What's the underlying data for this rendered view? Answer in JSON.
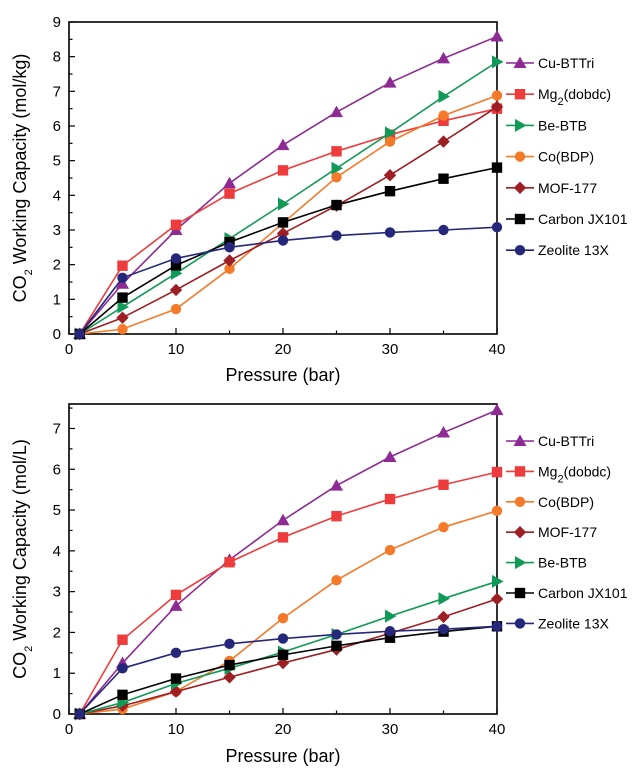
{
  "chart_data": [
    {
      "type": "line",
      "xlabel": "Pressure (bar)",
      "ylabel_parts": [
        "CO",
        "2",
        " Working Capacity (mol/kg)"
      ],
      "xlim": [
        0,
        40
      ],
      "ylim": [
        0,
        9
      ],
      "xticks": [
        0,
        10,
        20,
        30,
        40
      ],
      "yticks": [
        0,
        1,
        2,
        3,
        4,
        5,
        6,
        7,
        8,
        9
      ],
      "x": [
        1,
        5,
        10,
        15,
        20,
        25,
        30,
        35,
        40
      ],
      "legend_position": "right",
      "series": [
        {
          "name_parts": [
            "Cu-BTTri"
          ],
          "marker": "triangle-up",
          "color": "#8e2a93",
          "values": [
            0,
            1.45,
            3.0,
            4.35,
            5.45,
            6.4,
            7.25,
            7.95,
            8.58
          ]
        },
        {
          "name_parts": [
            "Mg",
            "2",
            "(dobdc)"
          ],
          "marker": "square",
          "color": "#ee3b3b",
          "values": [
            0,
            1.97,
            3.15,
            4.05,
            4.72,
            5.27,
            5.75,
            6.15,
            6.5
          ]
        },
        {
          "name_parts": [
            "Be-BTB"
          ],
          "marker": "triangle-right",
          "color": "#119a57",
          "values": [
            0,
            0.78,
            1.75,
            2.75,
            3.75,
            4.78,
            5.8,
            6.85,
            7.85
          ]
        },
        {
          "name_parts": [
            "Co(BDP)"
          ],
          "marker": "circle",
          "color": "#f47a2a",
          "values": [
            0,
            0.14,
            0.72,
            1.88,
            3.2,
            4.52,
            5.55,
            6.3,
            6.88
          ]
        },
        {
          "name_parts": [
            "MOF-177"
          ],
          "marker": "diamond",
          "color": "#9d1f24",
          "values": [
            0,
            0.47,
            1.27,
            2.12,
            2.9,
            3.7,
            4.58,
            5.55,
            6.55
          ]
        },
        {
          "name_parts": [
            "Carbon JX101"
          ],
          "marker": "square",
          "color": "#000000",
          "values": [
            0,
            1.05,
            1.98,
            2.65,
            3.22,
            3.72,
            4.12,
            4.48,
            4.8
          ]
        },
        {
          "name_parts": [
            "Zeolite 13X"
          ],
          "marker": "circle",
          "color": "#25287a",
          "values": [
            0,
            1.62,
            2.18,
            2.5,
            2.7,
            2.84,
            2.93,
            3.0,
            3.08
          ]
        }
      ]
    },
    {
      "type": "line",
      "xlabel": "Pressure (bar)",
      "ylabel_parts": [
        "CO",
        "2",
        " Working Capacity (mol/L)"
      ],
      "xlim": [
        0,
        40
      ],
      "ylim": [
        0,
        7.6
      ],
      "xticks": [
        0,
        10,
        20,
        30,
        40
      ],
      "yticks": [
        0,
        1,
        2,
        3,
        4,
        5,
        6,
        7
      ],
      "x": [
        1,
        5,
        10,
        15,
        20,
        25,
        30,
        35,
        40
      ],
      "legend_position": "right",
      "series": [
        {
          "name_parts": [
            "Cu-BTTri"
          ],
          "marker": "triangle-up",
          "color": "#8e2a93",
          "values": [
            0,
            1.25,
            2.65,
            3.78,
            4.75,
            5.6,
            6.3,
            6.9,
            7.45
          ]
        },
        {
          "name_parts": [
            "Mg",
            "2",
            "(dobdc)"
          ],
          "marker": "square",
          "color": "#ee3b3b",
          "values": [
            0,
            1.82,
            2.92,
            3.72,
            4.33,
            4.85,
            5.27,
            5.62,
            5.93
          ]
        },
        {
          "name_parts": [
            "Co(BDP)"
          ],
          "marker": "circle",
          "color": "#f47a2a",
          "values": [
            0,
            0.12,
            0.55,
            1.3,
            2.35,
            3.28,
            4.02,
            4.58,
            4.98
          ]
        },
        {
          "name_parts": [
            "MOF-177"
          ],
          "marker": "diamond",
          "color": "#9d1f24",
          "values": [
            0,
            0.2,
            0.55,
            0.9,
            1.25,
            1.58,
            1.98,
            2.38,
            2.82
          ]
        },
        {
          "name_parts": [
            "Be-BTB"
          ],
          "marker": "triangle-right",
          "color": "#119a57",
          "values": [
            0,
            0.28,
            0.75,
            1.12,
            1.52,
            1.95,
            2.4,
            2.83,
            3.25
          ]
        },
        {
          "name_parts": [
            "Carbon JX101"
          ],
          "marker": "square",
          "color": "#000000",
          "values": [
            0,
            0.47,
            0.87,
            1.2,
            1.45,
            1.67,
            1.87,
            2.02,
            2.15
          ]
        },
        {
          "name_parts": [
            "Zeolite 13X"
          ],
          "marker": "circle",
          "color": "#25287a",
          "values": [
            0,
            1.12,
            1.5,
            1.72,
            1.85,
            1.95,
            2.03,
            2.08,
            2.15
          ]
        }
      ]
    }
  ]
}
